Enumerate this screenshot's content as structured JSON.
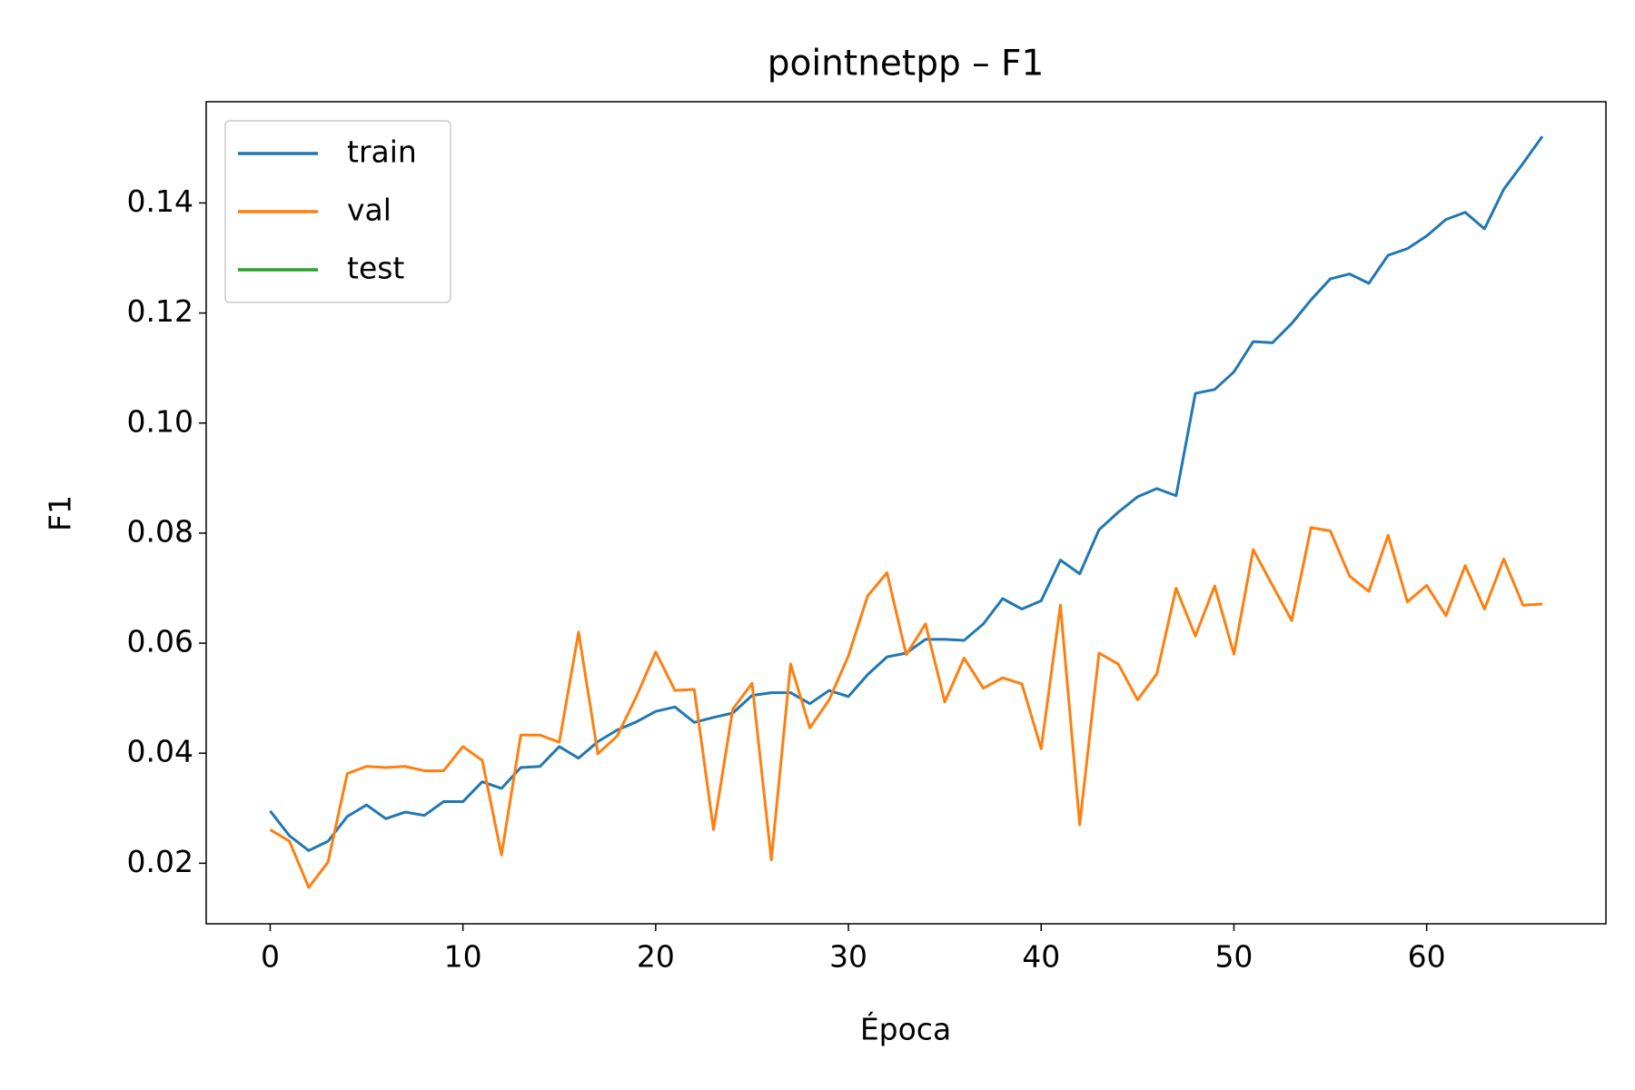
{
  "chart_data": {
    "type": "line",
    "title": "pointnetpp – F1",
    "xlabel": "Época",
    "ylabel": "F1",
    "x": [
      0,
      1,
      2,
      3,
      4,
      5,
      6,
      7,
      8,
      9,
      10,
      11,
      12,
      13,
      14,
      15,
      16,
      17,
      18,
      19,
      20,
      21,
      22,
      23,
      24,
      25,
      26,
      27,
      28,
      29,
      30,
      31,
      32,
      33,
      34,
      35,
      36,
      37,
      38,
      39,
      40,
      41,
      42,
      43,
      44,
      45,
      46,
      47,
      48,
      49,
      50,
      51,
      52,
      53,
      54,
      55,
      56,
      57,
      58,
      59,
      60,
      61,
      62,
      63,
      64,
      65,
      66
    ],
    "series": [
      {
        "name": "train",
        "color": "#1f77b4",
        "values": [
          0.0295,
          0.025,
          0.0223,
          0.024,
          0.0285,
          0.0306,
          0.0281,
          0.0293,
          0.0287,
          0.0312,
          0.0312,
          0.0348,
          0.0336,
          0.0374,
          0.0376,
          0.0412,
          0.0391,
          0.0421,
          0.0442,
          0.0457,
          0.0476,
          0.0484,
          0.0456,
          0.0465,
          0.0473,
          0.0505,
          0.051,
          0.051,
          0.049,
          0.0514,
          0.0503,
          0.0543,
          0.0575,
          0.0582,
          0.0607,
          0.0607,
          0.0605,
          0.0635,
          0.0681,
          0.0662,
          0.0677,
          0.0751,
          0.0726,
          0.0806,
          0.0838,
          0.0866,
          0.0881,
          0.0868,
          0.1054,
          0.1061,
          0.1093,
          0.1148,
          0.1146,
          0.1181,
          0.1224,
          0.1262,
          0.1271,
          0.1254,
          0.1305,
          0.1317,
          0.134,
          0.137,
          0.1383,
          0.1353,
          0.1425,
          0.1472,
          0.1521
        ]
      },
      {
        "name": "val",
        "color": "#ff7f0e",
        "values": [
          0.0261,
          0.024,
          0.0156,
          0.0202,
          0.0363,
          0.0376,
          0.0374,
          0.0376,
          0.0368,
          0.0368,
          0.0412,
          0.0387,
          0.0215,
          0.0433,
          0.0433,
          0.042,
          0.062,
          0.0399,
          0.0431,
          0.0503,
          0.0584,
          0.0514,
          0.0516,
          0.0261,
          0.048,
          0.0527,
          0.0206,
          0.0562,
          0.0446,
          0.0497,
          0.0577,
          0.0686,
          0.0728,
          0.0579,
          0.0635,
          0.0493,
          0.0573,
          0.0518,
          0.0537,
          0.0526,
          0.0408,
          0.0669,
          0.027,
          0.0582,
          0.0562,
          0.0497,
          0.0544,
          0.07,
          0.0613,
          0.0704,
          0.058,
          0.077,
          0.0705,
          0.0641,
          0.081,
          0.0804,
          0.0722,
          0.0694,
          0.0796,
          0.0675,
          0.0705,
          0.065,
          0.0741,
          0.0662,
          0.0753,
          0.0669,
          0.0671
        ]
      },
      {
        "name": "test",
        "color": "#2ca02c",
        "values": [
          null,
          null,
          null,
          null,
          null,
          null,
          null,
          null,
          null,
          null,
          null,
          null,
          null,
          null,
          null,
          null,
          null,
          null,
          null,
          null,
          null,
          null,
          null,
          null,
          null,
          null,
          null,
          null,
          null,
          null,
          null,
          null,
          null,
          null,
          null,
          null,
          null,
          null,
          null,
          null,
          null,
          null,
          null,
          null,
          null,
          null,
          null,
          null,
          null,
          null,
          null,
          null,
          null,
          null,
          null,
          null,
          null,
          null,
          null,
          null,
          null,
          null,
          null,
          null,
          null,
          null,
          null
        ]
      }
    ],
    "xlim": [
      -3.32,
      69.3
    ],
    "ylim": [
      0.009,
      0.1584
    ],
    "xticks": [
      0,
      10,
      20,
      30,
      40,
      50,
      60
    ],
    "yticks": [
      0.02,
      0.04,
      0.06,
      0.08,
      {
        "value": 0.1,
        "label": "0.10"
      },
      0.12,
      0.14
    ],
    "legend": "upper left",
    "grid": false
  }
}
